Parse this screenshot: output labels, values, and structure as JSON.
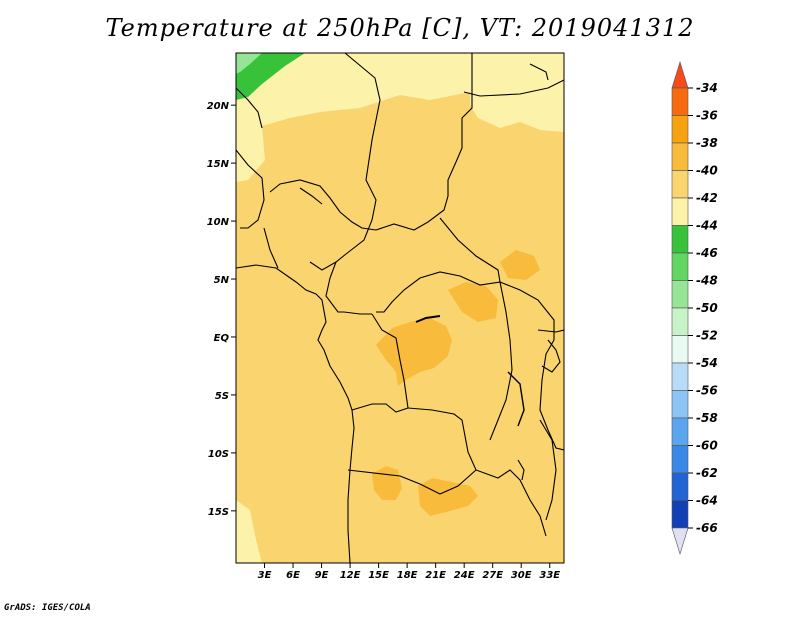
{
  "chart_data": {
    "type": "heatmap",
    "title": "Temperature at 250hPa [C], VT: 2019041312",
    "variable": "Temperature",
    "level": "250hPa",
    "units": "C",
    "valid_time": "2019041312",
    "x_range": [
      0,
      34.5
    ],
    "y_range": [
      -19.5,
      24.5
    ],
    "x_ticks": [
      3,
      6,
      9,
      12,
      15,
      18,
      21,
      24,
      27,
      30,
      33
    ],
    "x_tick_labels": [
      "3E",
      "6E",
      "9E",
      "12E",
      "15E",
      "18E",
      "21E",
      "24E",
      "27E",
      "30E",
      "33E"
    ],
    "y_ticks": [
      20,
      15,
      10,
      5,
      0,
      -5,
      -10,
      -15
    ],
    "y_tick_labels": [
      "20N",
      "15N",
      "10N",
      "5N",
      "EQ",
      "5S",
      "10S",
      "15S"
    ],
    "colorbar": {
      "levels": [
        -34,
        -36,
        -38,
        -40,
        -42,
        -44,
        -46,
        -48,
        -50,
        -52,
        -54,
        -56,
        -58,
        -60,
        -62,
        -64,
        -66
      ],
      "colors": [
        "#f44a1c",
        "#f76b10",
        "#f7a210",
        "#f9bb3c",
        "#fad46e",
        "#fdf2aa",
        "#38c23a",
        "#62d562",
        "#96e596",
        "#c8f2c8",
        "#e8faf2",
        "#b8dcf8",
        "#8cc4f4",
        "#5aa6ee",
        "#3a88e6",
        "#2264d4",
        "#1140b4",
        "#0a1e78",
        "#e0e0f2"
      ]
    },
    "regions": [
      {
        "label": "-44 to -46 band",
        "range": [
          -46,
          -44
        ],
        "where": "far north-west corner"
      },
      {
        "label": "-42 to -44 band",
        "range": [
          -44,
          -42
        ],
        "where": "northern Sahara and southwest edge"
      },
      {
        "label": "-40 to -42 band",
        "range": [
          -42,
          -40
        ],
        "where": "most of domain"
      },
      {
        "label": "-38 to -40 band",
        "range": [
          -40,
          -38
        ],
        "where": "patches over Congo Basin and southern Africa"
      }
    ]
  },
  "footer": {
    "credit": "GrADS: IGES/COLA"
  }
}
